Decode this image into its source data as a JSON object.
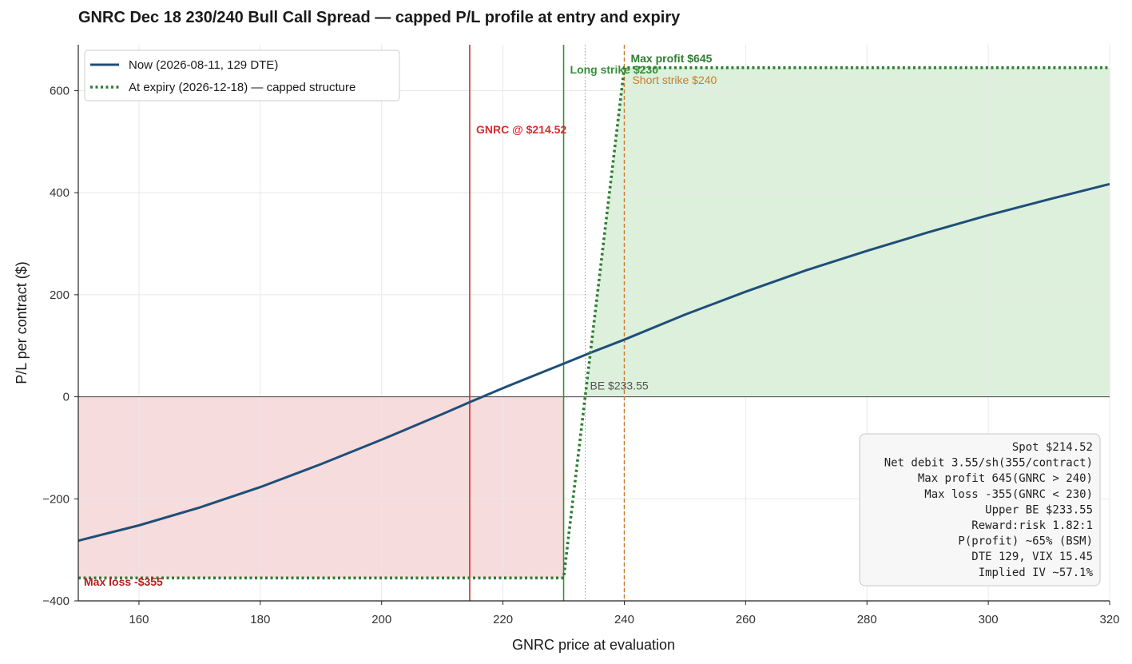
{
  "chart_data": {
    "type": "line",
    "title": "GNRC Dec 18 230/240 Bull Call Spread — capped P/L profile at entry and expiry",
    "xlabel": "GNRC price at evaluation",
    "ylabel": "P/L per contract ($)",
    "xlim": [
      150,
      320
    ],
    "ylim": [
      -400,
      690
    ],
    "x_ticks": [
      160,
      180,
      200,
      220,
      240,
      260,
      280,
      300,
      320
    ],
    "y_ticks": [
      -400,
      -200,
      0,
      200,
      400,
      600
    ],
    "x_tick_labels": [
      "160",
      "180",
      "200",
      "220",
      "240",
      "260",
      "280",
      "300",
      "320"
    ],
    "y_tick_labels": [
      "−400",
      "−200",
      "0",
      "200",
      "400",
      "600"
    ],
    "grid": true,
    "legend_position": "top-left",
    "series": [
      {
        "name": "Now (2026-08-11, 129 DTE)",
        "color": "#1f4e79",
        "style": "solid",
        "x": [
          150,
          160,
          170,
          180,
          190,
          200,
          210,
          215,
          220,
          225,
          230,
          235,
          240,
          250,
          260,
          270,
          280,
          290,
          300,
          310,
          320
        ],
        "y": [
          -282,
          -252,
          -217,
          -177,
          -132,
          -84,
          -34,
          -8,
          17,
          41,
          65,
          89,
          112,
          161,
          206,
          248,
          286,
          322,
          356,
          387,
          417
        ]
      },
      {
        "name": "At expiry (2026-12-18) — capped structure",
        "color": "#2e7d32",
        "style": "dotted",
        "x": [
          150,
          230,
          240,
          320
        ],
        "y": [
          -355,
          -355,
          645,
          645
        ]
      }
    ],
    "vertical_lines": [
      {
        "x": 214.52,
        "label": "GNRC @ $214.52",
        "color": "#d32f2f",
        "style": "solid"
      },
      {
        "x": 230,
        "label": "Long strike $230",
        "color": "#388e3c",
        "style": "solid"
      },
      {
        "x": 233.55,
        "label": "BE $233.55",
        "color": "#999999",
        "style": "dotted"
      },
      {
        "x": 240,
        "label": "Short strike $240",
        "color": "#c77c2a",
        "style": "dashed"
      }
    ],
    "annotations": {
      "max_profit": "Max profit $645",
      "max_loss": "Max loss -$355"
    },
    "info_box": [
      "Spot $214.52",
      "Net debit 3.55/sh(355/contract)",
      "Max profit 645(GNRC > 240)",
      "Max loss -355(GNRC < 230)",
      "Upper BE $233.55",
      "Reward:risk 1.82:1",
      "P(profit) ~65% (BSM)",
      "DTE 129, VIX 15.45",
      "Implied IV ~57.1%"
    ],
    "colors": {
      "profit_fill": "#dcf0dc",
      "loss_fill": "#f6dcdc",
      "now_line": "#1f4e79",
      "expiry_line": "#2e7d32",
      "spot_line": "#d32f2f",
      "max_loss_text": "#b71c1c",
      "max_profit_text": "#2e7d32",
      "short_strike_text": "#c77c2a"
    }
  }
}
